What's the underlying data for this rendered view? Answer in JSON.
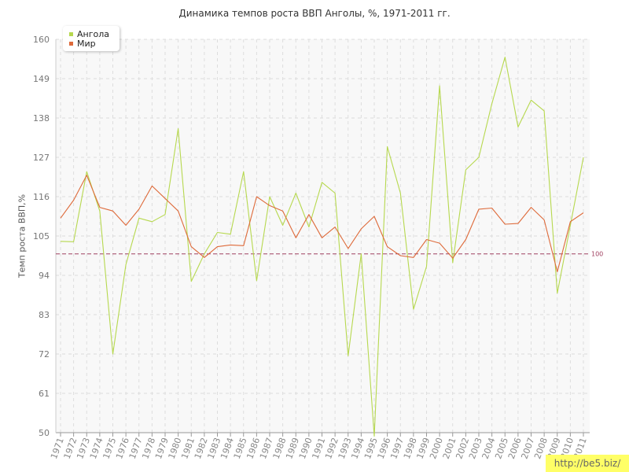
{
  "title": "Динамика темпов роста ВВП Анголы, %, 1971-2011 гг.",
  "watermark": "http://be5.biz/",
  "colors": {
    "angola": "#b6d84e",
    "world": "#de6a3a",
    "reference": "#a04060",
    "grid": "#dddddd",
    "axis": "#999999"
  },
  "chart_data": {
    "type": "line",
    "title": "Динамика темпов роста ВВП Анголы, %, 1971-2011 гг.",
    "ylabel": "Темп роста ВВП,%",
    "xlabel": "",
    "ylim": [
      50,
      160
    ],
    "yticks": [
      "50",
      "61",
      "72",
      "83",
      "94",
      "105",
      "116",
      "127",
      "138",
      "149",
      "160"
    ],
    "x": [
      "1971",
      "1972",
      "1973",
      "1974",
      "1975",
      "1976",
      "1977",
      "1978",
      "1979",
      "1980",
      "1981",
      "1982",
      "1983",
      "1984",
      "1985",
      "1986",
      "1987",
      "1988",
      "1989",
      "1990",
      "1991",
      "1992",
      "1993",
      "1994",
      "1995",
      "1996",
      "1997",
      "1998",
      "1999",
      "2000",
      "2001",
      "2002",
      "2003",
      "2004",
      "2005",
      "2006",
      "2007",
      "2008",
      "2009",
      "2010",
      "2011"
    ],
    "legend": "top-left",
    "grid": true,
    "reference_line": {
      "value": 100,
      "label": "100"
    },
    "series": [
      {
        "name": "Ангола",
        "color": "#b6d84e",
        "values": [
          103.5,
          103.4,
          123.0,
          112.0,
          72.0,
          97.0,
          110.0,
          109.0,
          111.0,
          135.0,
          92.3,
          100.0,
          106.0,
          105.5,
          123.0,
          92.5,
          116.0,
          108.0,
          117.0,
          107.5,
          120.0,
          117.0,
          71.5,
          100.0,
          49.0,
          130.0,
          117.0,
          84.5,
          96.5,
          147.0,
          97.5,
          123.5,
          127.0,
          142.0,
          155.0,
          135.5,
          143.0,
          140.0,
          89.0,
          108.0,
          127.0
        ]
      },
      {
        "name": "Мир",
        "color": "#de6a3a",
        "values": [
          110.0,
          115.0,
          122.0,
          113.0,
          112.0,
          108.0,
          112.5,
          119.0,
          115.5,
          112.0,
          102.0,
          99.0,
          102.0,
          102.5,
          102.3,
          116.0,
          113.5,
          112.0,
          104.5,
          111.0,
          104.5,
          107.5,
          101.5,
          107.0,
          110.5,
          102.0,
          99.5,
          99.0,
          104.0,
          103.0,
          98.8,
          104.0,
          112.5,
          112.8,
          108.3,
          108.5,
          113.0,
          109.5,
          95.0,
          109.0,
          111.5
        ]
      }
    ]
  }
}
